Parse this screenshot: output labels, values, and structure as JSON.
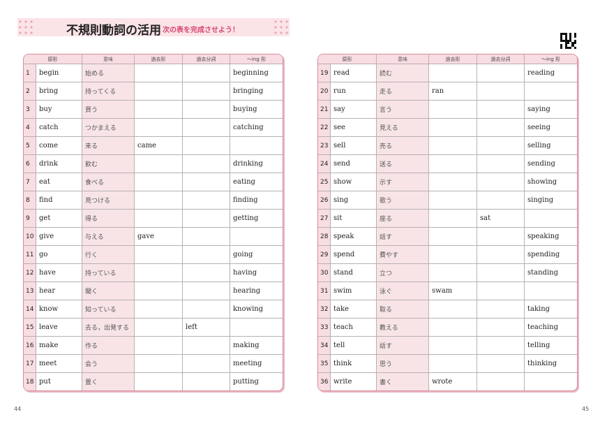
{
  "header": {
    "title": "不規則動詞の活用",
    "subtitle": "次の表を完成させよう！"
  },
  "columns": [
    "原形",
    "意味",
    "過去形",
    "過去分詞",
    "～ing 形"
  ],
  "left_rows": [
    {
      "n": "1",
      "base": "begin",
      "meaning": "始める",
      "past": "",
      "pp": "",
      "ing": "beginning"
    },
    {
      "n": "2",
      "base": "bring",
      "meaning": "持ってくる",
      "past": "",
      "pp": "",
      "ing": "bringing"
    },
    {
      "n": "3",
      "base": "buy",
      "meaning": "買う",
      "past": "",
      "pp": "",
      "ing": "buying"
    },
    {
      "n": "4",
      "base": "catch",
      "meaning": "つかまえる",
      "past": "",
      "pp": "",
      "ing": "catching"
    },
    {
      "n": "5",
      "base": "come",
      "meaning": "来る",
      "past": "came",
      "pp": "",
      "ing": ""
    },
    {
      "n": "6",
      "base": "drink",
      "meaning": "飲む",
      "past": "",
      "pp": "",
      "ing": "drinking"
    },
    {
      "n": "7",
      "base": "eat",
      "meaning": "食べる",
      "past": "",
      "pp": "",
      "ing": "eating"
    },
    {
      "n": "8",
      "base": "find",
      "meaning": "見つける",
      "past": "",
      "pp": "",
      "ing": "finding"
    },
    {
      "n": "9",
      "base": "get",
      "meaning": "得る",
      "past": "",
      "pp": "",
      "ing": "getting"
    },
    {
      "n": "10",
      "base": "give",
      "meaning": "与える",
      "past": "gave",
      "pp": "",
      "ing": ""
    },
    {
      "n": "11",
      "base": "go",
      "meaning": "行く",
      "past": "",
      "pp": "",
      "ing": "going"
    },
    {
      "n": "12",
      "base": "have",
      "meaning": "持っている",
      "past": "",
      "pp": "",
      "ing": "having"
    },
    {
      "n": "13",
      "base": "hear",
      "meaning": "聞く",
      "past": "",
      "pp": "",
      "ing": "hearing"
    },
    {
      "n": "14",
      "base": "know",
      "meaning": "知っている",
      "past": "",
      "pp": "",
      "ing": "knowing"
    },
    {
      "n": "15",
      "base": "leave",
      "meaning": "去る，出発する",
      "past": "",
      "pp": "left",
      "ing": ""
    },
    {
      "n": "16",
      "base": "make",
      "meaning": "作る",
      "past": "",
      "pp": "",
      "ing": "making"
    },
    {
      "n": "17",
      "base": "meet",
      "meaning": "会う",
      "past": "",
      "pp": "",
      "ing": "meeting"
    },
    {
      "n": "18",
      "base": "put",
      "meaning": "置く",
      "past": "",
      "pp": "",
      "ing": "putting"
    }
  ],
  "right_rows": [
    {
      "n": "19",
      "base": "read",
      "meaning": "読む",
      "past": "",
      "pp": "",
      "ing": "reading"
    },
    {
      "n": "20",
      "base": "run",
      "meaning": "走る",
      "past": "ran",
      "pp": "",
      "ing": ""
    },
    {
      "n": "21",
      "base": "say",
      "meaning": "言う",
      "past": "",
      "pp": "",
      "ing": "saying"
    },
    {
      "n": "22",
      "base": "see",
      "meaning": "見える",
      "past": "",
      "pp": "",
      "ing": "seeing"
    },
    {
      "n": "23",
      "base": "sell",
      "meaning": "売る",
      "past": "",
      "pp": "",
      "ing": "selling"
    },
    {
      "n": "24",
      "base": "send",
      "meaning": "送る",
      "past": "",
      "pp": "",
      "ing": "sending"
    },
    {
      "n": "25",
      "base": "show",
      "meaning": "示す",
      "past": "",
      "pp": "",
      "ing": "showing"
    },
    {
      "n": "26",
      "base": "sing",
      "meaning": "歌う",
      "past": "",
      "pp": "",
      "ing": "singing"
    },
    {
      "n": "27",
      "base": "sit",
      "meaning": "座る",
      "past": "",
      "pp": "sat",
      "ing": ""
    },
    {
      "n": "28",
      "base": "speak",
      "meaning": "話す",
      "past": "",
      "pp": "",
      "ing": "speaking"
    },
    {
      "n": "29",
      "base": "spend",
      "meaning": "費やす",
      "past": "",
      "pp": "",
      "ing": "spending"
    },
    {
      "n": "30",
      "base": "stand",
      "meaning": "立つ",
      "past": "",
      "pp": "",
      "ing": "standing"
    },
    {
      "n": "31",
      "base": "swim",
      "meaning": "泳ぐ",
      "past": "swam",
      "pp": "",
      "ing": ""
    },
    {
      "n": "32",
      "base": "take",
      "meaning": "取る",
      "past": "",
      "pp": "",
      "ing": "taking"
    },
    {
      "n": "33",
      "base": "teach",
      "meaning": "教える",
      "past": "",
      "pp": "",
      "ing": "teaching"
    },
    {
      "n": "34",
      "base": "tell",
      "meaning": "話す",
      "past": "",
      "pp": "",
      "ing": "telling"
    },
    {
      "n": "35",
      "base": "think",
      "meaning": "思う",
      "past": "",
      "pp": "",
      "ing": "thinking"
    },
    {
      "n": "36",
      "base": "write",
      "meaning": "書く",
      "past": "wrote",
      "pp": "",
      "ing": ""
    }
  ],
  "footer": {
    "left_page": "44",
    "right_page": "45"
  },
  "colors": {
    "accent": "#d9486f",
    "band": "#fbe4e8",
    "border": "#d98a9b"
  }
}
